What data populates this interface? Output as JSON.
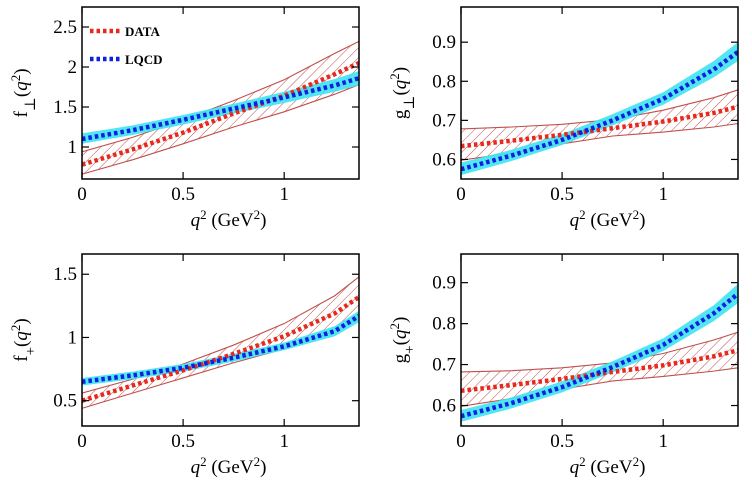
{
  "chart_data": [
    {
      "type": "line",
      "ylabel": "f⊥(q²)",
      "ylabel_parts": {
        "base": "f",
        "sub": "⊥",
        "arg": "q",
        "sup": "2"
      },
      "xlabel": "q² (GeV²)",
      "xlabel_parts": {
        "var": "q",
        "sup": "2",
        "unit": "GeV",
        "unit_sup": "2"
      },
      "xlim": [
        0,
        1.37
      ],
      "ylim": [
        0.6,
        2.75
      ],
      "xticks": [
        0,
        0.5,
        1
      ],
      "xtick_labels": [
        "0",
        "0.5",
        "1"
      ],
      "yticks": [
        1,
        1.5,
        2,
        2.5
      ],
      "ytick_labels": [
        "1",
        "1.5",
        "2",
        "2.5"
      ],
      "legend": [
        "DATA",
        "LQCD"
      ],
      "legend_position": "top-left",
      "series": [
        {
          "name": "DATA",
          "color": "#e8281c",
          "band_style": "hatched",
          "x": [
            0,
            0.25,
            0.5,
            0.75,
            1.0,
            1.25,
            1.37
          ],
          "values": [
            0.78,
            0.97,
            1.18,
            1.42,
            1.64,
            1.91,
            2.05
          ],
          "lower": [
            0.66,
            0.84,
            1.04,
            1.25,
            1.44,
            1.66,
            1.78
          ],
          "upper": [
            0.94,
            1.12,
            1.34,
            1.58,
            1.84,
            2.17,
            2.32
          ]
        },
        {
          "name": "LQCD",
          "color": "#0a22e0",
          "band_color": "#3fe3f3",
          "band_style": "solid",
          "x": [
            0,
            0.25,
            0.5,
            0.75,
            1.0,
            1.25,
            1.37
          ],
          "values": [
            1.1,
            1.21,
            1.34,
            1.48,
            1.62,
            1.77,
            1.86
          ],
          "lower": [
            1.04,
            1.15,
            1.28,
            1.42,
            1.55,
            1.69,
            1.77
          ],
          "upper": [
            1.17,
            1.27,
            1.4,
            1.54,
            1.69,
            1.85,
            1.95
          ]
        }
      ]
    },
    {
      "type": "line",
      "ylabel": "g⊥(q²)",
      "ylabel_parts": {
        "base": "g",
        "sub": "⊥",
        "arg": "q",
        "sup": "2"
      },
      "xlabel": "q² (GeV²)",
      "xlabel_parts": {
        "var": "q",
        "sup": "2",
        "unit": "GeV",
        "unit_sup": "2"
      },
      "xlim": [
        0,
        1.37
      ],
      "ylim": [
        0.55,
        0.99
      ],
      "xticks": [
        0,
        0.5,
        1
      ],
      "xtick_labels": [
        "0",
        "0.5",
        "1"
      ],
      "yticks": [
        0.6,
        0.7,
        0.8,
        0.9
      ],
      "ytick_labels": [
        "0.6",
        "0.7",
        "0.8",
        "0.9"
      ],
      "series": [
        {
          "name": "DATA",
          "color": "#e8281c",
          "band_style": "hatched",
          "x": [
            0,
            0.25,
            0.5,
            0.75,
            1.0,
            1.25,
            1.37
          ],
          "values": [
            0.634,
            0.648,
            0.663,
            0.68,
            0.697,
            0.719,
            0.735
          ],
          "lower": [
            0.598,
            0.616,
            0.64,
            0.66,
            0.67,
            0.683,
            0.692
          ],
          "upper": [
            0.678,
            0.683,
            0.69,
            0.702,
            0.726,
            0.758,
            0.778
          ]
        },
        {
          "name": "LQCD",
          "color": "#0a22e0",
          "band_color": "#3fe3f3",
          "band_style": "solid",
          "x": [
            0,
            0.25,
            0.5,
            0.75,
            1.0,
            1.25,
            1.37
          ],
          "values": [
            0.575,
            0.61,
            0.65,
            0.7,
            0.755,
            0.83,
            0.875
          ],
          "lower": [
            0.56,
            0.596,
            0.637,
            0.687,
            0.74,
            0.81,
            0.852
          ],
          "upper": [
            0.592,
            0.625,
            0.665,
            0.716,
            0.772,
            0.852,
            0.9
          ]
        }
      ]
    },
    {
      "type": "line",
      "ylabel": "f₊(q²)",
      "ylabel_parts": {
        "base": "f",
        "sub": "+",
        "arg": "q",
        "sup": "2"
      },
      "xlabel": "q² (GeV²)",
      "xlabel_parts": {
        "var": "q",
        "sup": "2",
        "unit": "GeV",
        "unit_sup": "2"
      },
      "xlim": [
        0,
        1.37
      ],
      "ylim": [
        0.3,
        1.66
      ],
      "xticks": [
        0,
        0.5,
        1
      ],
      "xtick_labels": [
        "0",
        "0.5",
        "1"
      ],
      "yticks": [
        0.5,
        1,
        1.5
      ],
      "ytick_labels": [
        "0.5",
        "1",
        "1.5"
      ],
      "series": [
        {
          "name": "DATA",
          "color": "#e8281c",
          "band_style": "hatched",
          "x": [
            0,
            0.25,
            0.5,
            0.75,
            1.0,
            1.25,
            1.37
          ],
          "values": [
            0.5,
            0.62,
            0.74,
            0.87,
            1.01,
            1.19,
            1.32
          ],
          "lower": [
            0.44,
            0.56,
            0.68,
            0.8,
            0.91,
            1.05,
            1.16
          ],
          "upper": [
            0.56,
            0.67,
            0.79,
            0.94,
            1.11,
            1.33,
            1.48
          ]
        },
        {
          "name": "LQCD",
          "color": "#0a22e0",
          "band_color": "#3fe3f3",
          "band_style": "solid",
          "x": [
            0,
            0.25,
            0.5,
            0.75,
            1.0,
            1.25,
            1.37
          ],
          "values": [
            0.65,
            0.7,
            0.76,
            0.84,
            0.93,
            1.05,
            1.17
          ],
          "lower": [
            0.62,
            0.67,
            0.73,
            0.81,
            0.9,
            1.01,
            1.12
          ],
          "upper": [
            0.68,
            0.73,
            0.79,
            0.87,
            0.96,
            1.09,
            1.21
          ]
        }
      ]
    },
    {
      "type": "line",
      "ylabel": "g₊(q²)",
      "ylabel_parts": {
        "base": "g",
        "sub": "+",
        "arg": "q",
        "sup": "2"
      },
      "xlabel": "q² (GeV²)",
      "xlabel_parts": {
        "var": "q",
        "sup": "2",
        "unit": "GeV",
        "unit_sup": "2"
      },
      "xlim": [
        0,
        1.37
      ],
      "ylim": [
        0.55,
        0.97
      ],
      "xticks": [
        0,
        0.5,
        1
      ],
      "xtick_labels": [
        "0",
        "0.5",
        "1"
      ],
      "yticks": [
        0.6,
        0.7,
        0.8,
        0.9
      ],
      "ytick_labels": [
        "0.6",
        "0.7",
        "0.8",
        "0.9"
      ],
      "series": [
        {
          "name": "DATA",
          "color": "#e8281c",
          "band_style": "hatched",
          "x": [
            0,
            0.25,
            0.5,
            0.75,
            1.0,
            1.25,
            1.37
          ],
          "values": [
            0.636,
            0.65,
            0.665,
            0.682,
            0.698,
            0.72,
            0.735
          ],
          "lower": [
            0.598,
            0.617,
            0.64,
            0.66,
            0.671,
            0.684,
            0.692
          ],
          "upper": [
            0.682,
            0.685,
            0.692,
            0.704,
            0.727,
            0.76,
            0.779
          ]
        },
        {
          "name": "LQCD",
          "color": "#0a22e0",
          "band_color": "#3fe3f3",
          "band_style": "solid",
          "x": [
            0,
            0.25,
            0.5,
            0.75,
            1.0,
            1.25,
            1.37
          ],
          "values": [
            0.574,
            0.606,
            0.645,
            0.694,
            0.748,
            0.825,
            0.873
          ],
          "lower": [
            0.56,
            0.593,
            0.632,
            0.681,
            0.733,
            0.806,
            0.85
          ],
          "upper": [
            0.589,
            0.62,
            0.659,
            0.708,
            0.764,
            0.845,
            0.897
          ]
        }
      ]
    }
  ]
}
